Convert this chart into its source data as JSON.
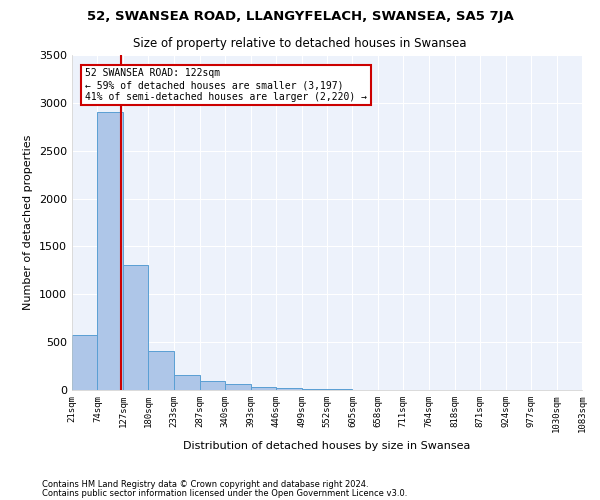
{
  "title1": "52, SWANSEA ROAD, LLANGYFELACH, SWANSEA, SA5 7JA",
  "title2": "Size of property relative to detached houses in Swansea",
  "xlabel": "Distribution of detached houses by size in Swansea",
  "ylabel": "Number of detached properties",
  "footnote1": "Contains HM Land Registry data © Crown copyright and database right 2024.",
  "footnote2": "Contains public sector information licensed under the Open Government Licence v3.0.",
  "annotation_line1": "52 SWANSEA ROAD: 122sqm",
  "annotation_line2": "← 59% of detached houses are smaller (3,197)",
  "annotation_line3": "41% of semi-detached houses are larger (2,220) →",
  "bar_color": "#aec6e8",
  "bar_edge_color": "#5a9fd4",
  "red_line_color": "#cc0000",
  "annotation_box_color": "#cc0000",
  "background_color": "#edf2fb",
  "bin_edges": [
    21,
    74,
    127,
    180,
    233,
    287,
    340,
    393,
    446,
    499,
    552,
    605,
    658,
    711,
    764,
    818,
    871,
    924,
    977,
    1030,
    1083
  ],
  "bin_counts": [
    575,
    2900,
    1310,
    410,
    160,
    95,
    60,
    30,
    18,
    12,
    8,
    5,
    4,
    3,
    3,
    2,
    2,
    2,
    1,
    1
  ],
  "property_size": 122,
  "ylim": [
    0,
    3500
  ],
  "xlim": [
    21,
    1083
  ],
  "yticks": [
    0,
    500,
    1000,
    1500,
    2000,
    2500,
    3000,
    3500
  ]
}
